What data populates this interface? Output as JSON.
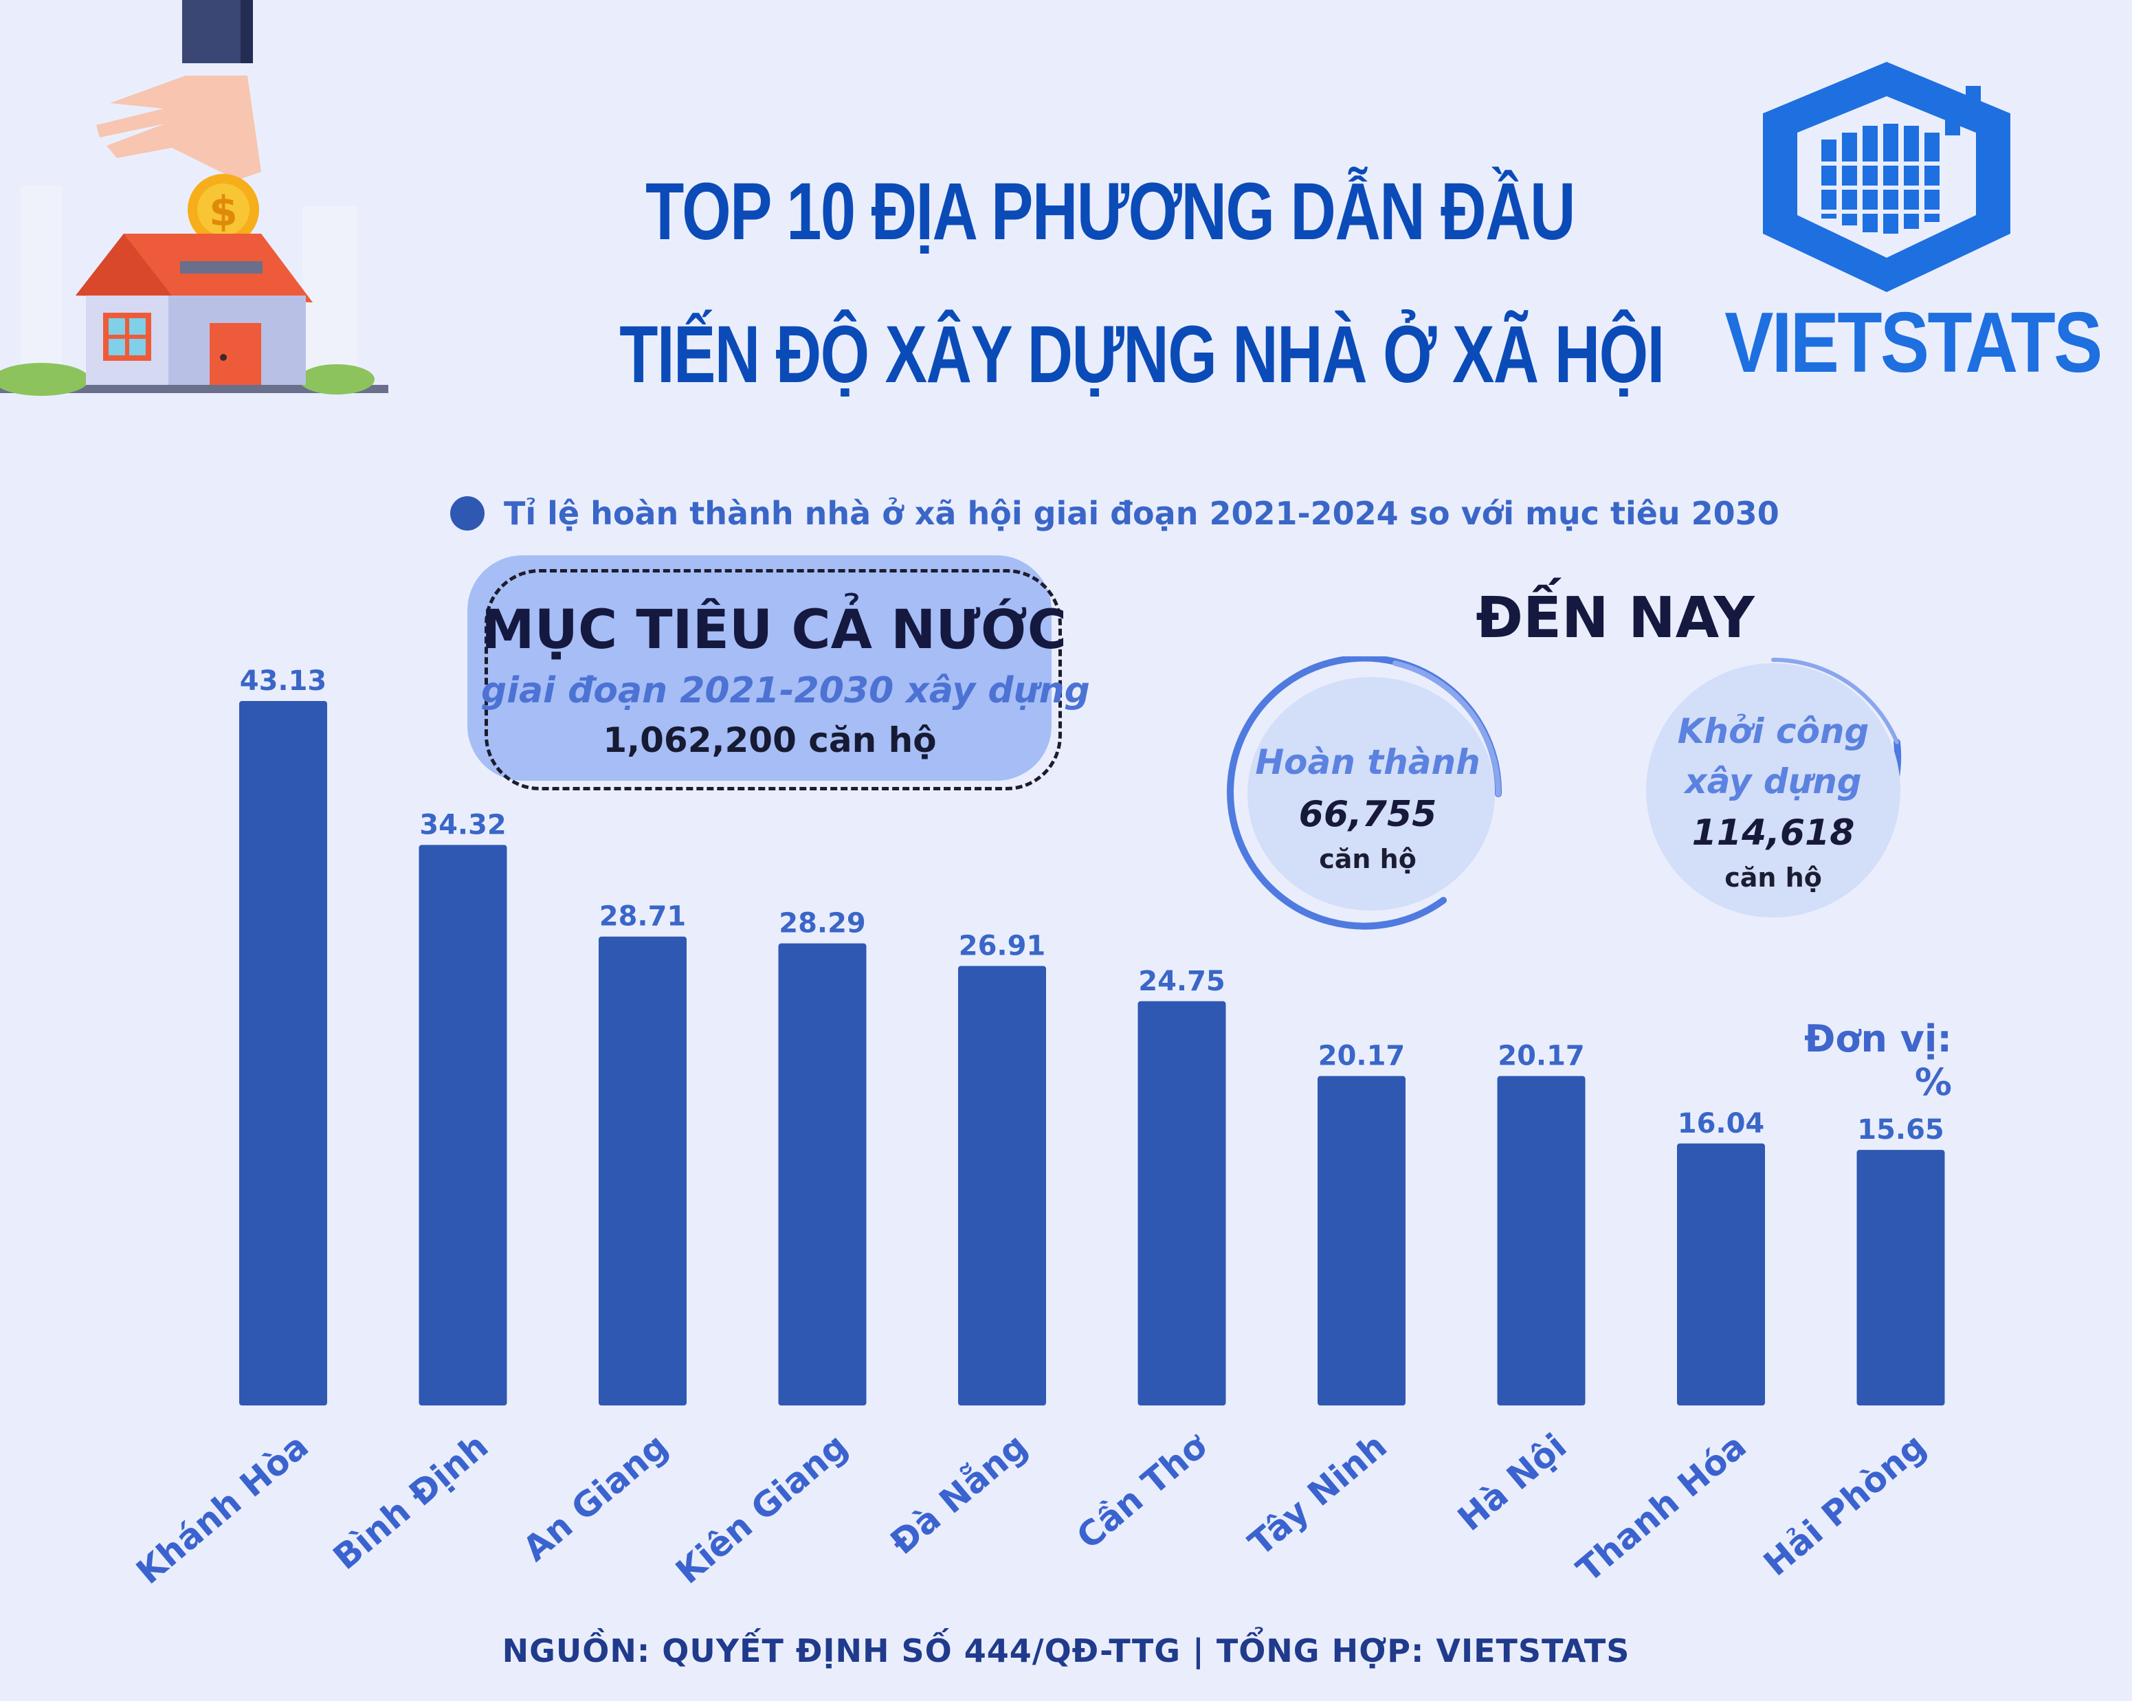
{
  "header": {
    "title_line1": "TOP 10 ĐỊA PHƯƠNG DẪN ĐẦU",
    "title_line2": "TIẾN ĐỘ XÂY DỰNG NHÀ Ở XÃ HỘI",
    "brand": "VIETSTATS"
  },
  "legend": {
    "label": "Tỉ lệ hoàn thành nhà ở xã hội giai đoạn 2021-2024 so với mục tiêu 2030",
    "color": "#2f58b3"
  },
  "target": {
    "heading": "MỤC TIÊU CẢ NƯỚC",
    "subheading": "giai đoạn 2021-2030 xây dựng",
    "value": "1,062,200 căn hộ"
  },
  "progress": {
    "heading": "ĐẾN NAY",
    "completed": {
      "label": "Hoàn thành",
      "value": "66,755",
      "unit": "căn hộ"
    },
    "started": {
      "label_line1": "Khởi công",
      "label_line2": "xây dựng",
      "value": "114,618",
      "unit": "căn hộ"
    }
  },
  "unit_note": "Đơn vị: %",
  "source": "NGUỒN: QUYẾT ĐỊNH SỐ 444/QĐ-TTG | TỔNG HỢP: VIETSTATS",
  "chart_data": {
    "type": "bar",
    "categories": [
      "Khánh Hòa",
      "Bình Định",
      "An Giang",
      "Kiên Giang",
      "Đà Nẵng",
      "Cần Thơ",
      "Tây Ninh",
      "Hà Nội",
      "Thanh Hóa",
      "Hải Phòng"
    ],
    "values": [
      43.13,
      34.32,
      28.71,
      28.29,
      26.91,
      24.75,
      20.17,
      20.17,
      16.04,
      15.65
    ],
    "value_labels": [
      "43.13",
      "34.32",
      "28.71",
      "28.29",
      "26.91",
      "24.75",
      "20.17",
      "20.17",
      "16.04",
      "15.65"
    ],
    "series": [
      {
        "name": "Tỉ lệ hoàn thành nhà ở xã hội giai đoạn 2021-2024 so với mục tiêu 2030",
        "values": [
          43.13,
          34.32,
          28.71,
          28.29,
          26.91,
          24.75,
          20.17,
          20.17,
          16.04,
          15.65
        ]
      }
    ],
    "title": "TOP 10 ĐỊA PHƯƠNG DẪN ĐẦU TIẾN ĐỘ XÂY DỰNG NHÀ Ở XÃ HỘI",
    "ylabel": "Đơn vị: %",
    "ylim": [
      0,
      43.13
    ],
    "grid": false,
    "legend_position": "top",
    "bar_color": "#2f58b3",
    "label_color": "#3a66c8",
    "category_color": "#3b63cf"
  }
}
